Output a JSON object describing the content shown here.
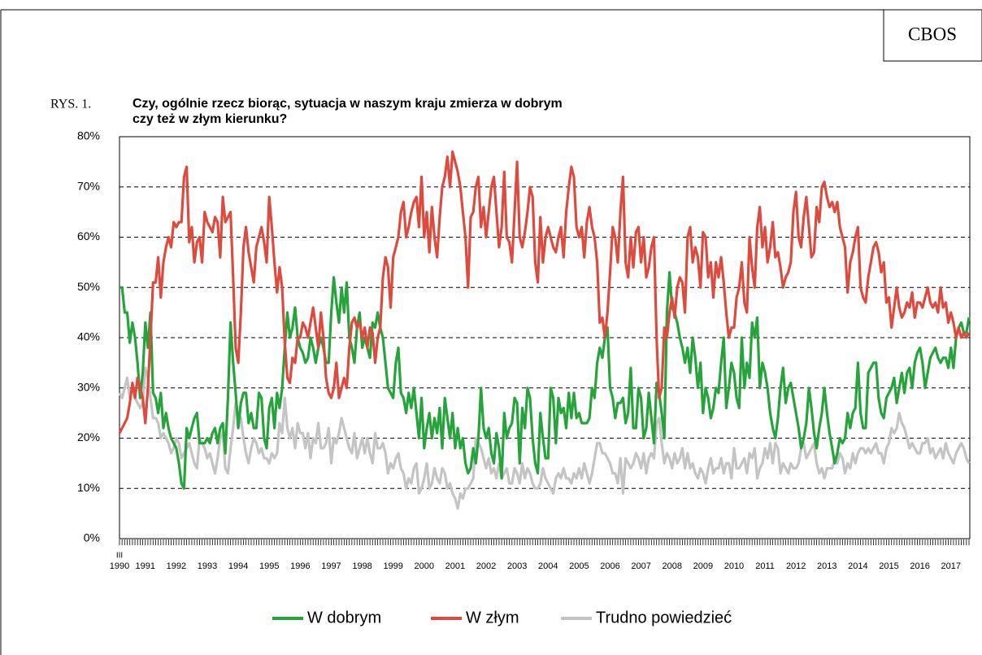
{
  "chart_data": {
    "type": "line",
    "brand": "CBOS",
    "figure_label": "RYS. 1.",
    "title_lines": [
      "Czy, ogólnie rzecz biorąc, sytuacja w naszym kraju zmierza w dobrym",
      "czy też w złym kierunku?"
    ],
    "x_start_label": "III",
    "categories": [
      "1990",
      null,
      null,
      null,
      null,
      null,
      null,
      null,
      null,
      null,
      "1991",
      null,
      null,
      null,
      null,
      null,
      null,
      null,
      null,
      null,
      null,
      null,
      "1992",
      null,
      null,
      null,
      null,
      null,
      null,
      null,
      null,
      null,
      null,
      null,
      "1993",
      null,
      null,
      null,
      null,
      null,
      null,
      null,
      null,
      null,
      null,
      null,
      "1994",
      null,
      null,
      null,
      null,
      null,
      null,
      null,
      null,
      null,
      null,
      null,
      "1995",
      null,
      null,
      null,
      null,
      null,
      null,
      null,
      null,
      null,
      null,
      null,
      "1996",
      null,
      null,
      null,
      null,
      null,
      null,
      null,
      null,
      null,
      null,
      null,
      "1997",
      null,
      null,
      null,
      null,
      null,
      null,
      null,
      null,
      null,
      null,
      null,
      "1998",
      null,
      null,
      null,
      null,
      null,
      null,
      null,
      null,
      null,
      null,
      null,
      "1999",
      null,
      null,
      null,
      null,
      null,
      null,
      null,
      null,
      null,
      null,
      null,
      "2000",
      null,
      null,
      null,
      null,
      null,
      null,
      null,
      null,
      null,
      null,
      null,
      "2001",
      null,
      null,
      null,
      null,
      null,
      null,
      null,
      null,
      null,
      null,
      null,
      "2002",
      null,
      null,
      null,
      null,
      null,
      null,
      null,
      null,
      null,
      null,
      null,
      "2003",
      null,
      null,
      null,
      null,
      null,
      null,
      null,
      null,
      null,
      null,
      null,
      "2004",
      null,
      null,
      null,
      null,
      null,
      null,
      null,
      null,
      null,
      null,
      null,
      "2005",
      null,
      null,
      null,
      null,
      null,
      null,
      null,
      null,
      null,
      null,
      null,
      "2006",
      null,
      null,
      null,
      null,
      null,
      null,
      null,
      null,
      null,
      null,
      null,
      "2007",
      null,
      null,
      null,
      null,
      null,
      null,
      null,
      null,
      null,
      null,
      null,
      "2008",
      null,
      null,
      null,
      null,
      null,
      null,
      null,
      null,
      null,
      null,
      null,
      "2009",
      null,
      null,
      null,
      null,
      null,
      null,
      null,
      null,
      null,
      null,
      null,
      "2010",
      null,
      null,
      null,
      null,
      null,
      null,
      null,
      null,
      null,
      null,
      null,
      "2011",
      null,
      null,
      null,
      null,
      null,
      null,
      null,
      null,
      null,
      null,
      null,
      "2012",
      null,
      null,
      null,
      null,
      null,
      null,
      null,
      null,
      null,
      null,
      null,
      "2013",
      null,
      null,
      null,
      null,
      null,
      null,
      null,
      null,
      null,
      null,
      null,
      "2014",
      null,
      null,
      null,
      null,
      null,
      null,
      null,
      null,
      null,
      null,
      null,
      "2015",
      null,
      null,
      null,
      null,
      null,
      null,
      null,
      null,
      null,
      null,
      null,
      "2016",
      null,
      null,
      null,
      null,
      null,
      null,
      null,
      null,
      null,
      null,
      null,
      "2017",
      null,
      null,
      null,
      null,
      null,
      null,
      null
    ],
    "ylim": [
      0,
      80
    ],
    "yticks": [
      {
        "value": 0,
        "label": "0%"
      },
      {
        "value": 10,
        "label": "10%"
      },
      {
        "value": 20,
        "label": "20%"
      },
      {
        "value": 30,
        "label": "30%"
      },
      {
        "value": 40,
        "label": "40%"
      },
      {
        "value": 50,
        "label": "50%"
      },
      {
        "value": 60,
        "label": "60%"
      },
      {
        "value": 70,
        "label": "70%"
      },
      {
        "value": 80,
        "label": "80%"
      }
    ],
    "grid": true,
    "legend": "bottom",
    "series": [
      {
        "name": "W dobrym",
        "color": "#27a33c",
        "values": [
          50,
          50,
          45,
          45,
          39,
          43,
          40,
          35,
          28,
          33,
          43,
          38,
          45,
          29,
          28,
          25,
          29,
          22,
          25,
          22,
          20,
          19,
          18,
          15,
          11,
          10,
          22,
          20,
          22,
          24,
          25,
          19,
          19,
          19,
          20,
          19,
          21,
          22,
          19,
          22,
          23,
          17,
          28,
          43,
          35,
          29,
          22,
          27,
          29,
          29,
          23,
          25,
          22,
          22,
          29,
          28,
          20,
          18,
          26,
          28,
          22,
          29,
          26,
          30,
          38,
          45,
          40,
          42,
          46,
          40,
          38,
          37,
          35,
          36,
          40,
          38,
          35,
          38,
          40,
          38,
          35,
          35,
          45,
          52,
          47,
          43,
          50,
          45,
          51,
          40,
          38,
          35,
          42,
          45,
          38,
          40,
          38,
          36,
          43,
          42,
          45,
          42,
          40,
          35,
          30,
          29,
          28,
          35,
          38,
          29,
          28,
          25,
          29,
          26,
          30,
          25,
          20,
          28,
          18,
          22,
          25,
          20,
          24,
          21,
          26,
          18,
          28,
          24,
          20,
          25,
          18,
          22,
          18,
          20,
          15,
          13,
          14,
          18,
          15,
          20,
          30,
          22,
          20,
          22,
          17,
          15,
          21,
          18,
          12,
          25,
          20,
          22,
          23,
          28,
          27,
          15,
          26,
          22,
          30,
          28,
          20,
          15,
          13,
          25,
          20,
          16,
          16,
          30,
          28,
          19,
          28,
          25,
          26,
          22,
          29,
          24,
          29,
          24,
          25,
          23,
          23,
          23,
          24,
          30,
          28,
          35,
          38,
          36,
          40,
          42,
          30,
          28,
          24,
          27,
          27,
          28,
          23,
          25,
          34,
          22,
          22,
          30,
          28,
          20,
          22,
          29,
          24,
          19,
          31,
          29,
          25,
          20,
          45,
          53,
          46,
          45,
          43,
          40,
          38,
          35,
          38,
          33,
          40,
          36,
          30,
          35,
          25,
          30,
          28,
          24,
          26,
          30,
          29,
          35,
          40,
          26,
          30,
          35,
          33,
          28,
          26,
          40,
          30,
          35,
          32,
          43,
          40,
          44,
          30,
          35,
          33,
          30,
          25,
          22,
          20,
          24,
          30,
          34,
          27,
          30,
          31,
          28,
          25,
          22,
          18,
          20,
          23,
          30,
          26,
          21,
          18,
          22,
          25,
          30,
          25,
          21,
          18,
          15,
          17,
          20,
          19,
          20,
          25,
          22,
          25,
          26,
          35,
          25,
          22,
          22,
          33,
          34,
          35,
          35,
          28,
          25,
          24,
          28,
          29,
          30,
          32,
          27,
          30,
          33,
          29,
          33,
          34,
          30,
          35,
          37,
          38,
          35,
          30,
          33,
          36,
          37,
          38,
          36,
          35,
          36,
          36,
          34,
          38,
          34,
          40,
          42,
          43,
          41,
          41,
          44
        ]
      },
      {
        "name": "W złym",
        "color": "#dc4b3e",
        "values": [
          21,
          22,
          23,
          24,
          27,
          31,
          28,
          32,
          30,
          28,
          23,
          30,
          40,
          51,
          51,
          56,
          48,
          55,
          58,
          60,
          58,
          63,
          62,
          63,
          63,
          72,
          74,
          59,
          62,
          55,
          59,
          60,
          55,
          65,
          63,
          62,
          61,
          64,
          63,
          56,
          68,
          63,
          64,
          65,
          52,
          38,
          35,
          45,
          58,
          62,
          57,
          54,
          51,
          58,
          60,
          62,
          59,
          55,
          68,
          62,
          55,
          49,
          54,
          50,
          39,
          32,
          31,
          36,
          35,
          40,
          40,
          43,
          42,
          40,
          43,
          46,
          42,
          38,
          45,
          40,
          32,
          29,
          28,
          30,
          35,
          28,
          30,
          32,
          30,
          38,
          43,
          44,
          42,
          43,
          40,
          42,
          38,
          42,
          41,
          35,
          40,
          42,
          52,
          56,
          54,
          46,
          56,
          58,
          60,
          65,
          67,
          60,
          62,
          65,
          67,
          68,
          62,
          72,
          60,
          65,
          57,
          66,
          60,
          56,
          64,
          70,
          72,
          76,
          70,
          77,
          75,
          73,
          70,
          65,
          60,
          50,
          64,
          65,
          70,
          72,
          62,
          66,
          60,
          65,
          70,
          72,
          65,
          58,
          62,
          73,
          60,
          59,
          55,
          65,
          75,
          60,
          58,
          61,
          65,
          70,
          68,
          55,
          51,
          64,
          55,
          60,
          62,
          60,
          58,
          57,
          60,
          62,
          56,
          65,
          70,
          74,
          72,
          62,
          60,
          62,
          56,
          63,
          66,
          62,
          60,
          55,
          43,
          44,
          40,
          45,
          53,
          62,
          60,
          55,
          65,
          72,
          55,
          52,
          60,
          54,
          61,
          62,
          55,
          60,
          52,
          54,
          58,
          60,
          40,
          28,
          30,
          42,
          40,
          45,
          48,
          44,
          50,
          52,
          51,
          45,
          60,
          62,
          55,
          58,
          56,
          50,
          61,
          60,
          52,
          55,
          48,
          55,
          52,
          56,
          51,
          45,
          40,
          42,
          42,
          48,
          50,
          55,
          47,
          45,
          60,
          54,
          50,
          62,
          66,
          58,
          62,
          55,
          58,
          63,
          56,
          57,
          54,
          50,
          52,
          53,
          55,
          65,
          69,
          60,
          58,
          64,
          68,
          62,
          56,
          57,
          66,
          63,
          70,
          71,
          68,
          66,
          67,
          65,
          67,
          62,
          60,
          58,
          49,
          55,
          57,
          60,
          62,
          50,
          48,
          47,
          52,
          55,
          58,
          59,
          57,
          53,
          55,
          47,
          48,
          42,
          46,
          50,
          46,
          44,
          45,
          47,
          46,
          49,
          44,
          47,
          47,
          46,
          48,
          50,
          47,
          46,
          47,
          45,
          50,
          46,
          47,
          43,
          45,
          43,
          40,
          42,
          40,
          41,
          40,
          41
        ]
      },
      {
        "name": "Trudno powiedzieć",
        "color": "#c4c4c4",
        "values": [
          29,
          28,
          30,
          32,
          28,
          30,
          28,
          27,
          26,
          27,
          34,
          32,
          28,
          24,
          24,
          23,
          20,
          21,
          20,
          19,
          17,
          18,
          20,
          19,
          16,
          17,
          18,
          19,
          17,
          15,
          14,
          20,
          19,
          18,
          16,
          17,
          15,
          13,
          16,
          20,
          21,
          14,
          13,
          18,
          22,
          27,
          25,
          24,
          20,
          17,
          15,
          18,
          20,
          19,
          17,
          18,
          16,
          16,
          15,
          17,
          16,
          17,
          23,
          21,
          28,
          22,
          20,
          22,
          18,
          23,
          21,
          21,
          18,
          21,
          16,
          20,
          19,
          23,
          18,
          18,
          19,
          22,
          15,
          20,
          19,
          21,
          24,
          22,
          20,
          18,
          17,
          21,
          16,
          18,
          20,
          17,
          20,
          17,
          15,
          21,
          18,
          18,
          19,
          17,
          13,
          15,
          14,
          16,
          17,
          14,
          13,
          10,
          12,
          11,
          14,
          15,
          9,
          10,
          12,
          15,
          10,
          11,
          14,
          12,
          11,
          14,
          13,
          10,
          11,
          9,
          8,
          6,
          9,
          8,
          10,
          10,
          11,
          12,
          20,
          19,
          18,
          16,
          14,
          16,
          13,
          14,
          12,
          15,
          12,
          13,
          14,
          11,
          11,
          14,
          13,
          11,
          15,
          12,
          14,
          13,
          11,
          10,
          10,
          11,
          14,
          12,
          11,
          10,
          9,
          12,
          13,
          12,
          14,
          12,
          12,
          11,
          13,
          12,
          14,
          12,
          15,
          13,
          11,
          13,
          16,
          19,
          19,
          17,
          17,
          16,
          15,
          13,
          13,
          11,
          16,
          9,
          16,
          15,
          14,
          15,
          17,
          16,
          14,
          17,
          13,
          16,
          17,
          16,
          23,
          24,
          19,
          15,
          17,
          16,
          14,
          17,
          15,
          16,
          18,
          14,
          17,
          14,
          15,
          13,
          12,
          14,
          13,
          11,
          14,
          16,
          13,
          14,
          14,
          16,
          13,
          15,
          15,
          12,
          18,
          14,
          14,
          15,
          16,
          13,
          17,
          16,
          18,
          12,
          14,
          15,
          18,
          16,
          19,
          15,
          19,
          18,
          13,
          15,
          14,
          13,
          15,
          14,
          14,
          15,
          18,
          19,
          16,
          17,
          18,
          19,
          15,
          13,
          14,
          12,
          14,
          14,
          14,
          16,
          15,
          17,
          16,
          13,
          15,
          14,
          17,
          15,
          17,
          18,
          18,
          17,
          18,
          17,
          18,
          19,
          17,
          17,
          15,
          18,
          19,
          22,
          21,
          22,
          25,
          23,
          22,
          20,
          18,
          19,
          18,
          17,
          17,
          19,
          19,
          20,
          17,
          18,
          16,
          17,
          18,
          16,
          19,
          17,
          16,
          15,
          17,
          18,
          19,
          18,
          16,
          15
        ]
      }
    ]
  }
}
